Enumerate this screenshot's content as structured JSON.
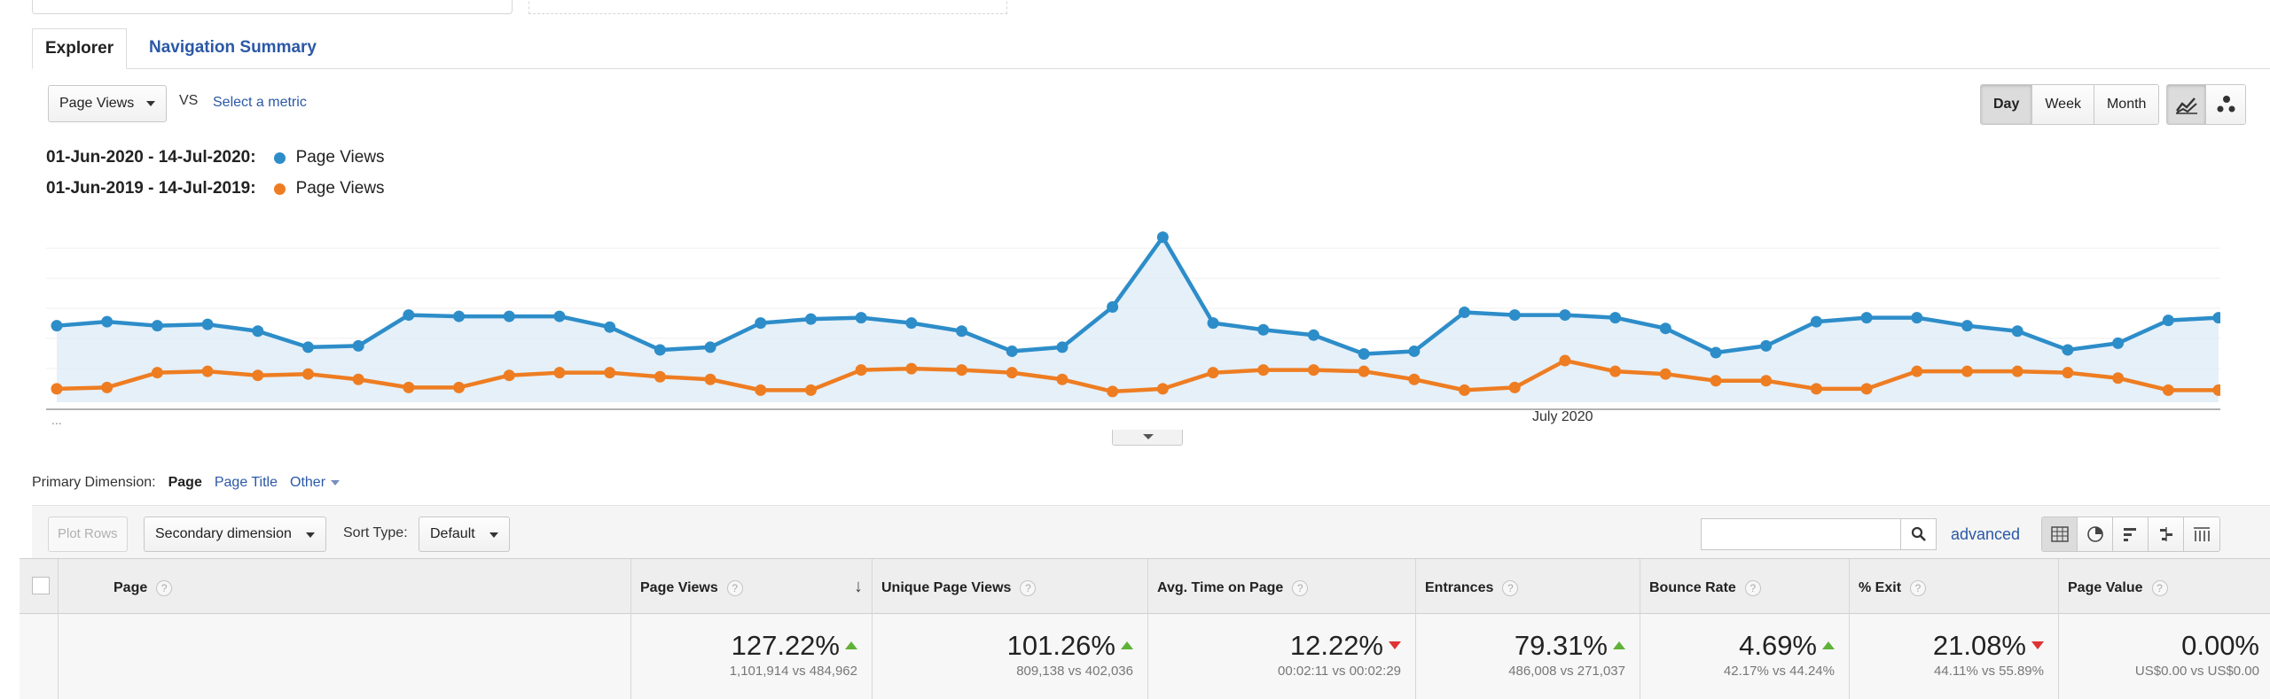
{
  "tabs": [
    {
      "label": "Explorer"
    },
    {
      "label": "Navigation Summary"
    }
  ],
  "metric": {
    "selected": "Page Views",
    "vs": "VS",
    "select_metric": "Select a metric"
  },
  "period_buttons": [
    "Day",
    "Week",
    "Month"
  ],
  "period_selected": "Day",
  "chart_type_icons": [
    "line-chart-icon",
    "motion-chart-icon"
  ],
  "legend": [
    {
      "range": "01-Jun-2020 - 14-Jul-2020:",
      "metric": "Page Views",
      "color": "#2d8dc9"
    },
    {
      "range": "01-Jun-2019 - 14-Jul-2019:",
      "metric": "Page Views",
      "color": "#ee7d22"
    }
  ],
  "chart_data": {
    "type": "line",
    "xlabel_start": "...",
    "xlabel_mid": "July 2020",
    "series": [
      {
        "name": "01-Jun-2020 - 14-Jul-2020: Page Views",
        "color": "#2d8dc9",
        "values": [
          42,
          45,
          42,
          43,
          38,
          26,
          27,
          50,
          49,
          49,
          49,
          41,
          24,
          26,
          44,
          47,
          48,
          44,
          38,
          23,
          26,
          56,
          108,
          44,
          39,
          35,
          21,
          23,
          52,
          50,
          50,
          48,
          40,
          22,
          27,
          45,
          48,
          48,
          42,
          38,
          24,
          29,
          46,
          48
        ]
      },
      {
        "name": "01-Jun-2019 - 14-Jul-2019: Page Views",
        "color": "#ee7d22",
        "values": [
          -5,
          -4,
          7,
          8,
          5,
          6,
          2,
          -4,
          -4,
          5,
          7,
          7,
          4,
          2,
          -6,
          -6,
          9,
          10,
          9,
          7,
          2,
          -7,
          -5,
          7,
          9,
          9,
          8,
          2,
          -6,
          -4,
          16,
          8,
          6,
          1,
          1,
          -5,
          -5,
          8,
          8,
          8,
          7,
          3,
          -6,
          -6
        ]
      }
    ]
  },
  "primary_dimension": {
    "label": "Primary Dimension:",
    "active": "Page",
    "page_title": "Page Title",
    "other": "Other"
  },
  "toolbar": {
    "plot_rows": "Plot Rows",
    "secondary_dimension": "Secondary dimension",
    "sort_type_label": "Sort Type:",
    "sort_type_value": "Default",
    "search_placeholder": "",
    "advanced": "advanced"
  },
  "table": {
    "headers": [
      "Page",
      "Page Views",
      "Unique Page Views",
      "Avg. Time on Page",
      "Entrances",
      "Bounce Rate",
      "% Exit",
      "Page Value"
    ],
    "summary": [
      {
        "value": "127.22%",
        "compare": "1,101,914 vs 484,962",
        "trend": "up"
      },
      {
        "value": "101.26%",
        "compare": "809,138 vs 402,036",
        "trend": "up"
      },
      {
        "value": "12.22%",
        "compare": "00:02:11 vs 00:02:29",
        "trend": "down"
      },
      {
        "value": "79.31%",
        "compare": "486,008 vs 271,037",
        "trend": "up"
      },
      {
        "value": "4.69%",
        "compare": "42.17% vs 44.24%",
        "trend": "up"
      },
      {
        "value": "21.08%",
        "compare": "44.11% vs 55.89%",
        "trend": "down"
      },
      {
        "value": "0.00%",
        "compare": "US$0.00 vs US$0.00",
        "trend": "none"
      }
    ]
  }
}
